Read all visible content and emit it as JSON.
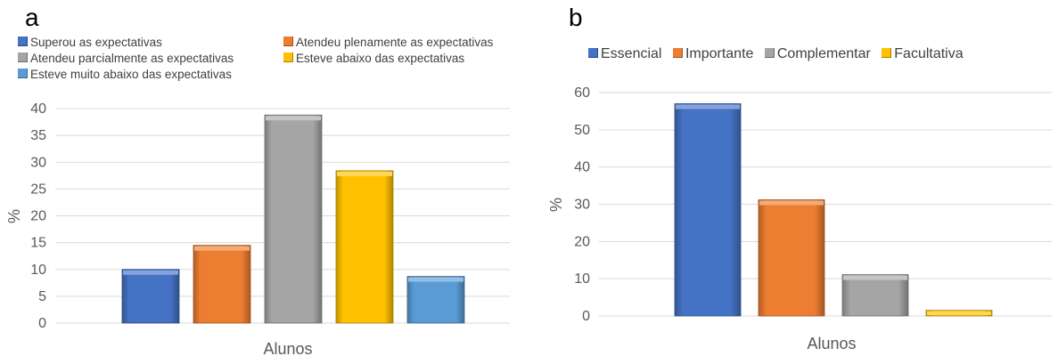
{
  "chart_data": [
    {
      "panel": "a",
      "type": "bar",
      "xlabel": "Alunos",
      "ylabel": "%",
      "ylim": [
        0,
        40
      ],
      "yticks": [
        "0",
        "5",
        "10",
        "15",
        "20",
        "25",
        "30",
        "35",
        "40"
      ],
      "grid": true,
      "legend_position": "top",
      "categories": [
        "Alunos"
      ],
      "series": [
        {
          "name": "Superou as expectativas",
          "values": [
            10
          ],
          "color": "#4472C4"
        },
        {
          "name": "Atendeu plenamente as expectativas",
          "values": [
            14.5
          ],
          "color": "#ED7D31"
        },
        {
          "name": "Atendeu parcialmente as expectativas",
          "values": [
            38.8
          ],
          "color": "#A5A5A5"
        },
        {
          "name": "Esteve abaixo das expectativas",
          "values": [
            28.4
          ],
          "color": "#FFC000"
        },
        {
          "name": "Esteve muito abaixo das expectativas",
          "values": [
            8.7
          ],
          "color": "#5B9BD5"
        }
      ]
    },
    {
      "panel": "b",
      "type": "bar",
      "xlabel": "Alunos",
      "ylabel": "%",
      "ylim": [
        0,
        60
      ],
      "yticks": [
        "0",
        "10",
        "20",
        "30",
        "40",
        "50",
        "60"
      ],
      "grid": true,
      "legend_position": "top",
      "categories": [
        "Alunos"
      ],
      "series": [
        {
          "name": "Essencial",
          "values": [
            57
          ],
          "color": "#4472C4"
        },
        {
          "name": "Importante",
          "values": [
            31.2
          ],
          "color": "#ED7D31"
        },
        {
          "name": "Complementar",
          "values": [
            11.1
          ],
          "color": "#A5A5A5"
        },
        {
          "name": "Facultativa",
          "values": [
            1.5
          ],
          "color": "#FFC000"
        }
      ]
    }
  ],
  "panels": {
    "a": {
      "label": "a"
    },
    "b": {
      "label": "b"
    }
  }
}
